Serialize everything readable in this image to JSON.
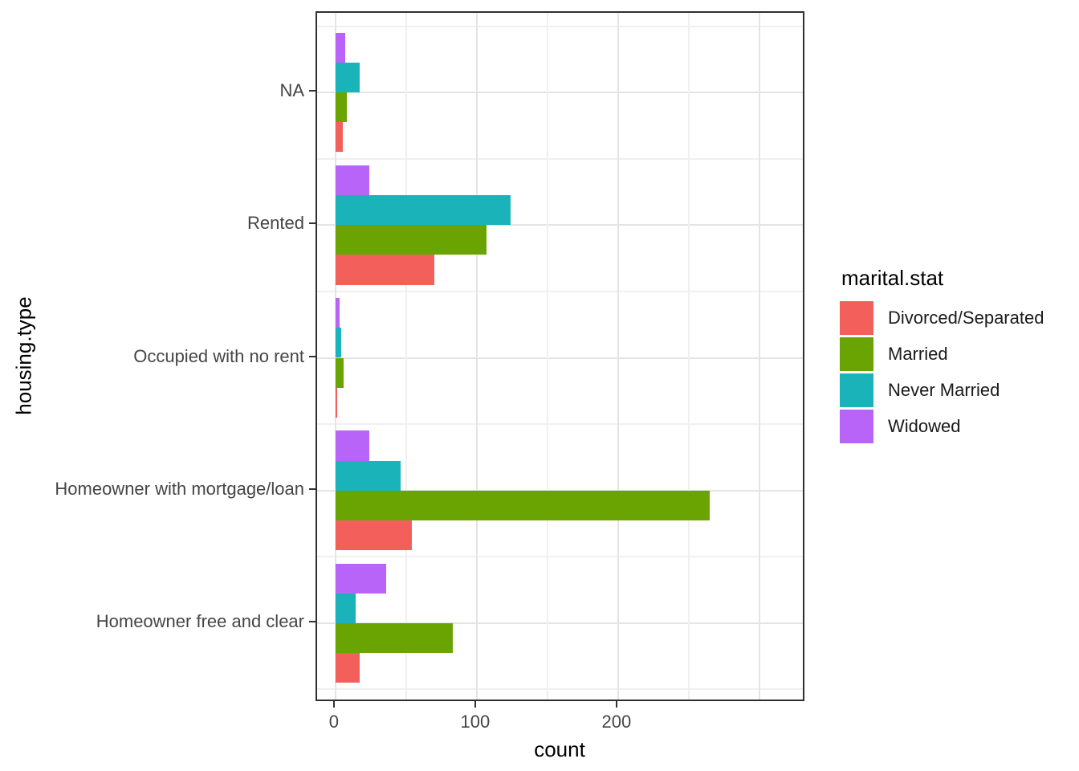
{
  "chart_data": {
    "type": "bar",
    "orientation": "horizontal",
    "title": "",
    "xlabel": "count",
    "ylabel": "housing.type",
    "categories_top_to_bottom": [
      "NA",
      "Rented",
      "Occupied with no rent",
      "Homeowner with mortgage/loan",
      "Homeowner free and clear"
    ],
    "series": [
      {
        "name": "Divorced/Separated",
        "color": "#F3605B",
        "values": [
          5,
          70,
          1,
          54,
          17
        ]
      },
      {
        "name": "Married",
        "color": "#6AA402",
        "values": [
          8,
          107,
          6,
          265,
          83
        ]
      },
      {
        "name": "Never Married",
        "color": "#19B3B9",
        "values": [
          17,
          124,
          4,
          46,
          14
        ]
      },
      {
        "name": "Widowed",
        "color": "#B864F8",
        "values": [
          7,
          24,
          3,
          24,
          36
        ]
      }
    ],
    "x_axis": {
      "tick_values": [
        0,
        100,
        200
      ],
      "tick_labels": [
        "0",
        "100",
        "200"
      ],
      "major_gridlines": [
        0,
        100,
        200,
        300
      ],
      "minor_gridlines": [
        50,
        150,
        250
      ],
      "xlim": [
        -13,
        333
      ]
    },
    "legend": {
      "title": "marital.stat",
      "position": "right",
      "entries": [
        "Divorced/Separated",
        "Married",
        "Never Married",
        "Widowed"
      ]
    },
    "grid": true
  },
  "styles": {
    "panel_border": "#2F2F2F",
    "grid_major": "#E4E4E4",
    "grid_minor": "#F0F0F0",
    "tick_color": "#333333",
    "axis_text_color": "#454545",
    "title_color": "#000000",
    "background": "#FFFFFF"
  }
}
